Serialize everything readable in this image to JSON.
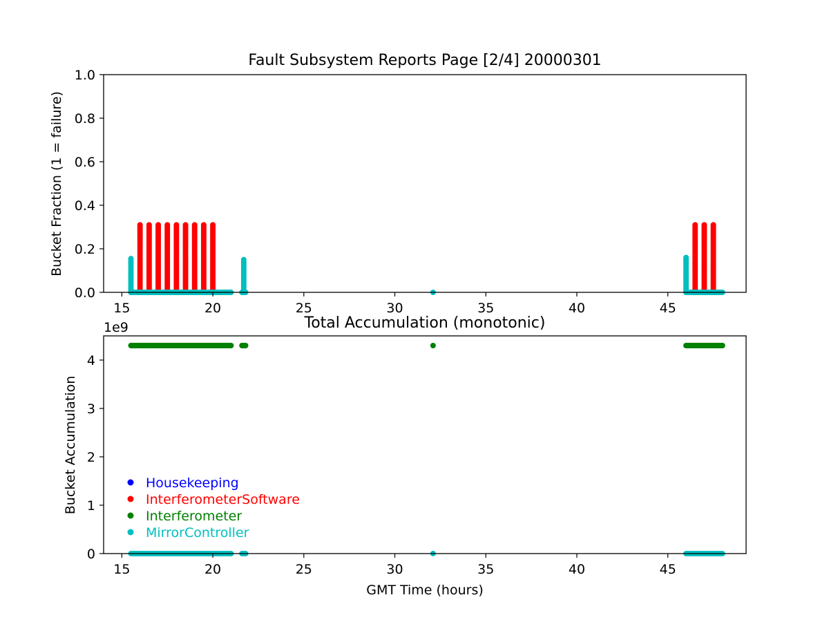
{
  "chart_data": [
    {
      "type": "scatter",
      "title": "Fault Subsystem Reports Page [2/4] 20000301",
      "xlabel": "",
      "ylabel": "Bucket Fraction (1 = failure)",
      "xlim": [
        14.0,
        49.3
      ],
      "ylim": [
        0.0,
        1.0
      ],
      "x_ticks": [
        15,
        20,
        25,
        30,
        35,
        40,
        45
      ],
      "y_ticks": [
        0.0,
        0.2,
        0.4,
        0.6,
        0.8,
        1.0
      ],
      "grid": false,
      "legend": "none",
      "series": [
        {
          "name": "Housekeeping",
          "color": "#0000ff",
          "points": [],
          "segments": []
        },
        {
          "name": "InterferometerSoftware",
          "color": "#ff0000",
          "points": [],
          "segments": [
            {
              "x": 16.0,
              "y0": 0.0,
              "y1": 0.31
            },
            {
              "x": 16.5,
              "y0": 0.0,
              "y1": 0.31
            },
            {
              "x": 17.0,
              "y0": 0.0,
              "y1": 0.31
            },
            {
              "x": 17.5,
              "y0": 0.0,
              "y1": 0.31
            },
            {
              "x": 18.0,
              "y0": 0.0,
              "y1": 0.31
            },
            {
              "x": 18.5,
              "y0": 0.0,
              "y1": 0.31
            },
            {
              "x": 19.0,
              "y0": 0.0,
              "y1": 0.31
            },
            {
              "x": 19.5,
              "y0": 0.0,
              "y1": 0.31
            },
            {
              "x": 20.0,
              "y0": 0.0,
              "y1": 0.31
            },
            {
              "x": 46.5,
              "y0": 0.0,
              "y1": 0.31
            },
            {
              "x": 47.0,
              "y0": 0.0,
              "y1": 0.31
            },
            {
              "x": 47.5,
              "y0": 0.0,
              "y1": 0.31
            }
          ]
        },
        {
          "name": "Interferometer",
          "color": "#008000",
          "points": [],
          "segments": []
        },
        {
          "name": "MirrorController",
          "color": "#00bfbf",
          "points": [
            {
              "x": 32.1,
              "y": 0.0
            }
          ],
          "segments": [
            {
              "x": 15.5,
              "y0": 0.0,
              "y1": 0.155
            },
            {
              "x": 21.7,
              "y0": 0.0,
              "y1": 0.15
            },
            {
              "x": 46.0,
              "y0": 0.0,
              "y1": 0.16
            },
            {
              "x0": 15.5,
              "x1": 21.0,
              "y": 0.0
            },
            {
              "x0": 21.6,
              "x1": 21.8,
              "y": 0.0
            },
            {
              "x0": 46.0,
              "x1": 48.0,
              "y": 0.0
            }
          ]
        }
      ]
    },
    {
      "type": "scatter",
      "title": "Total Accumulation (monotonic)",
      "xlabel": "GMT Time (hours)",
      "ylabel": "Bucket Accumulation",
      "y_offset_label": "1e9",
      "xlim": [
        14.0,
        49.3
      ],
      "ylim": [
        0.0,
        4.5
      ],
      "x_ticks": [
        15,
        20,
        25,
        30,
        35,
        40,
        45
      ],
      "y_ticks": [
        0,
        1,
        2,
        3,
        4
      ],
      "grid": false,
      "legend": "lower-left",
      "series": [
        {
          "name": "Housekeeping",
          "color": "#0000ff",
          "points": [],
          "segments": []
        },
        {
          "name": "InterferometerSoftware",
          "color": "#ff0000",
          "points": [],
          "segments": []
        },
        {
          "name": "Interferometer",
          "color": "#008000",
          "points": [
            {
              "x": 32.1,
              "y": 4.3
            }
          ],
          "segments": [
            {
              "x0": 15.5,
              "x1": 21.0,
              "y": 4.3
            },
            {
              "x0": 21.6,
              "x1": 21.8,
              "y": 4.3
            },
            {
              "x0": 46.0,
              "x1": 48.0,
              "y": 4.3
            }
          ]
        },
        {
          "name": "MirrorController",
          "color": "#00bfbf",
          "points": [
            {
              "x": 32.1,
              "y": 0.0
            }
          ],
          "segments": [
            {
              "x0": 15.5,
              "x1": 21.0,
              "y": 0.0
            },
            {
              "x0": 21.6,
              "x1": 21.8,
              "y": 0.0
            },
            {
              "x0": 46.0,
              "x1": 48.0,
              "y": 0.0
            }
          ]
        }
      ]
    }
  ]
}
